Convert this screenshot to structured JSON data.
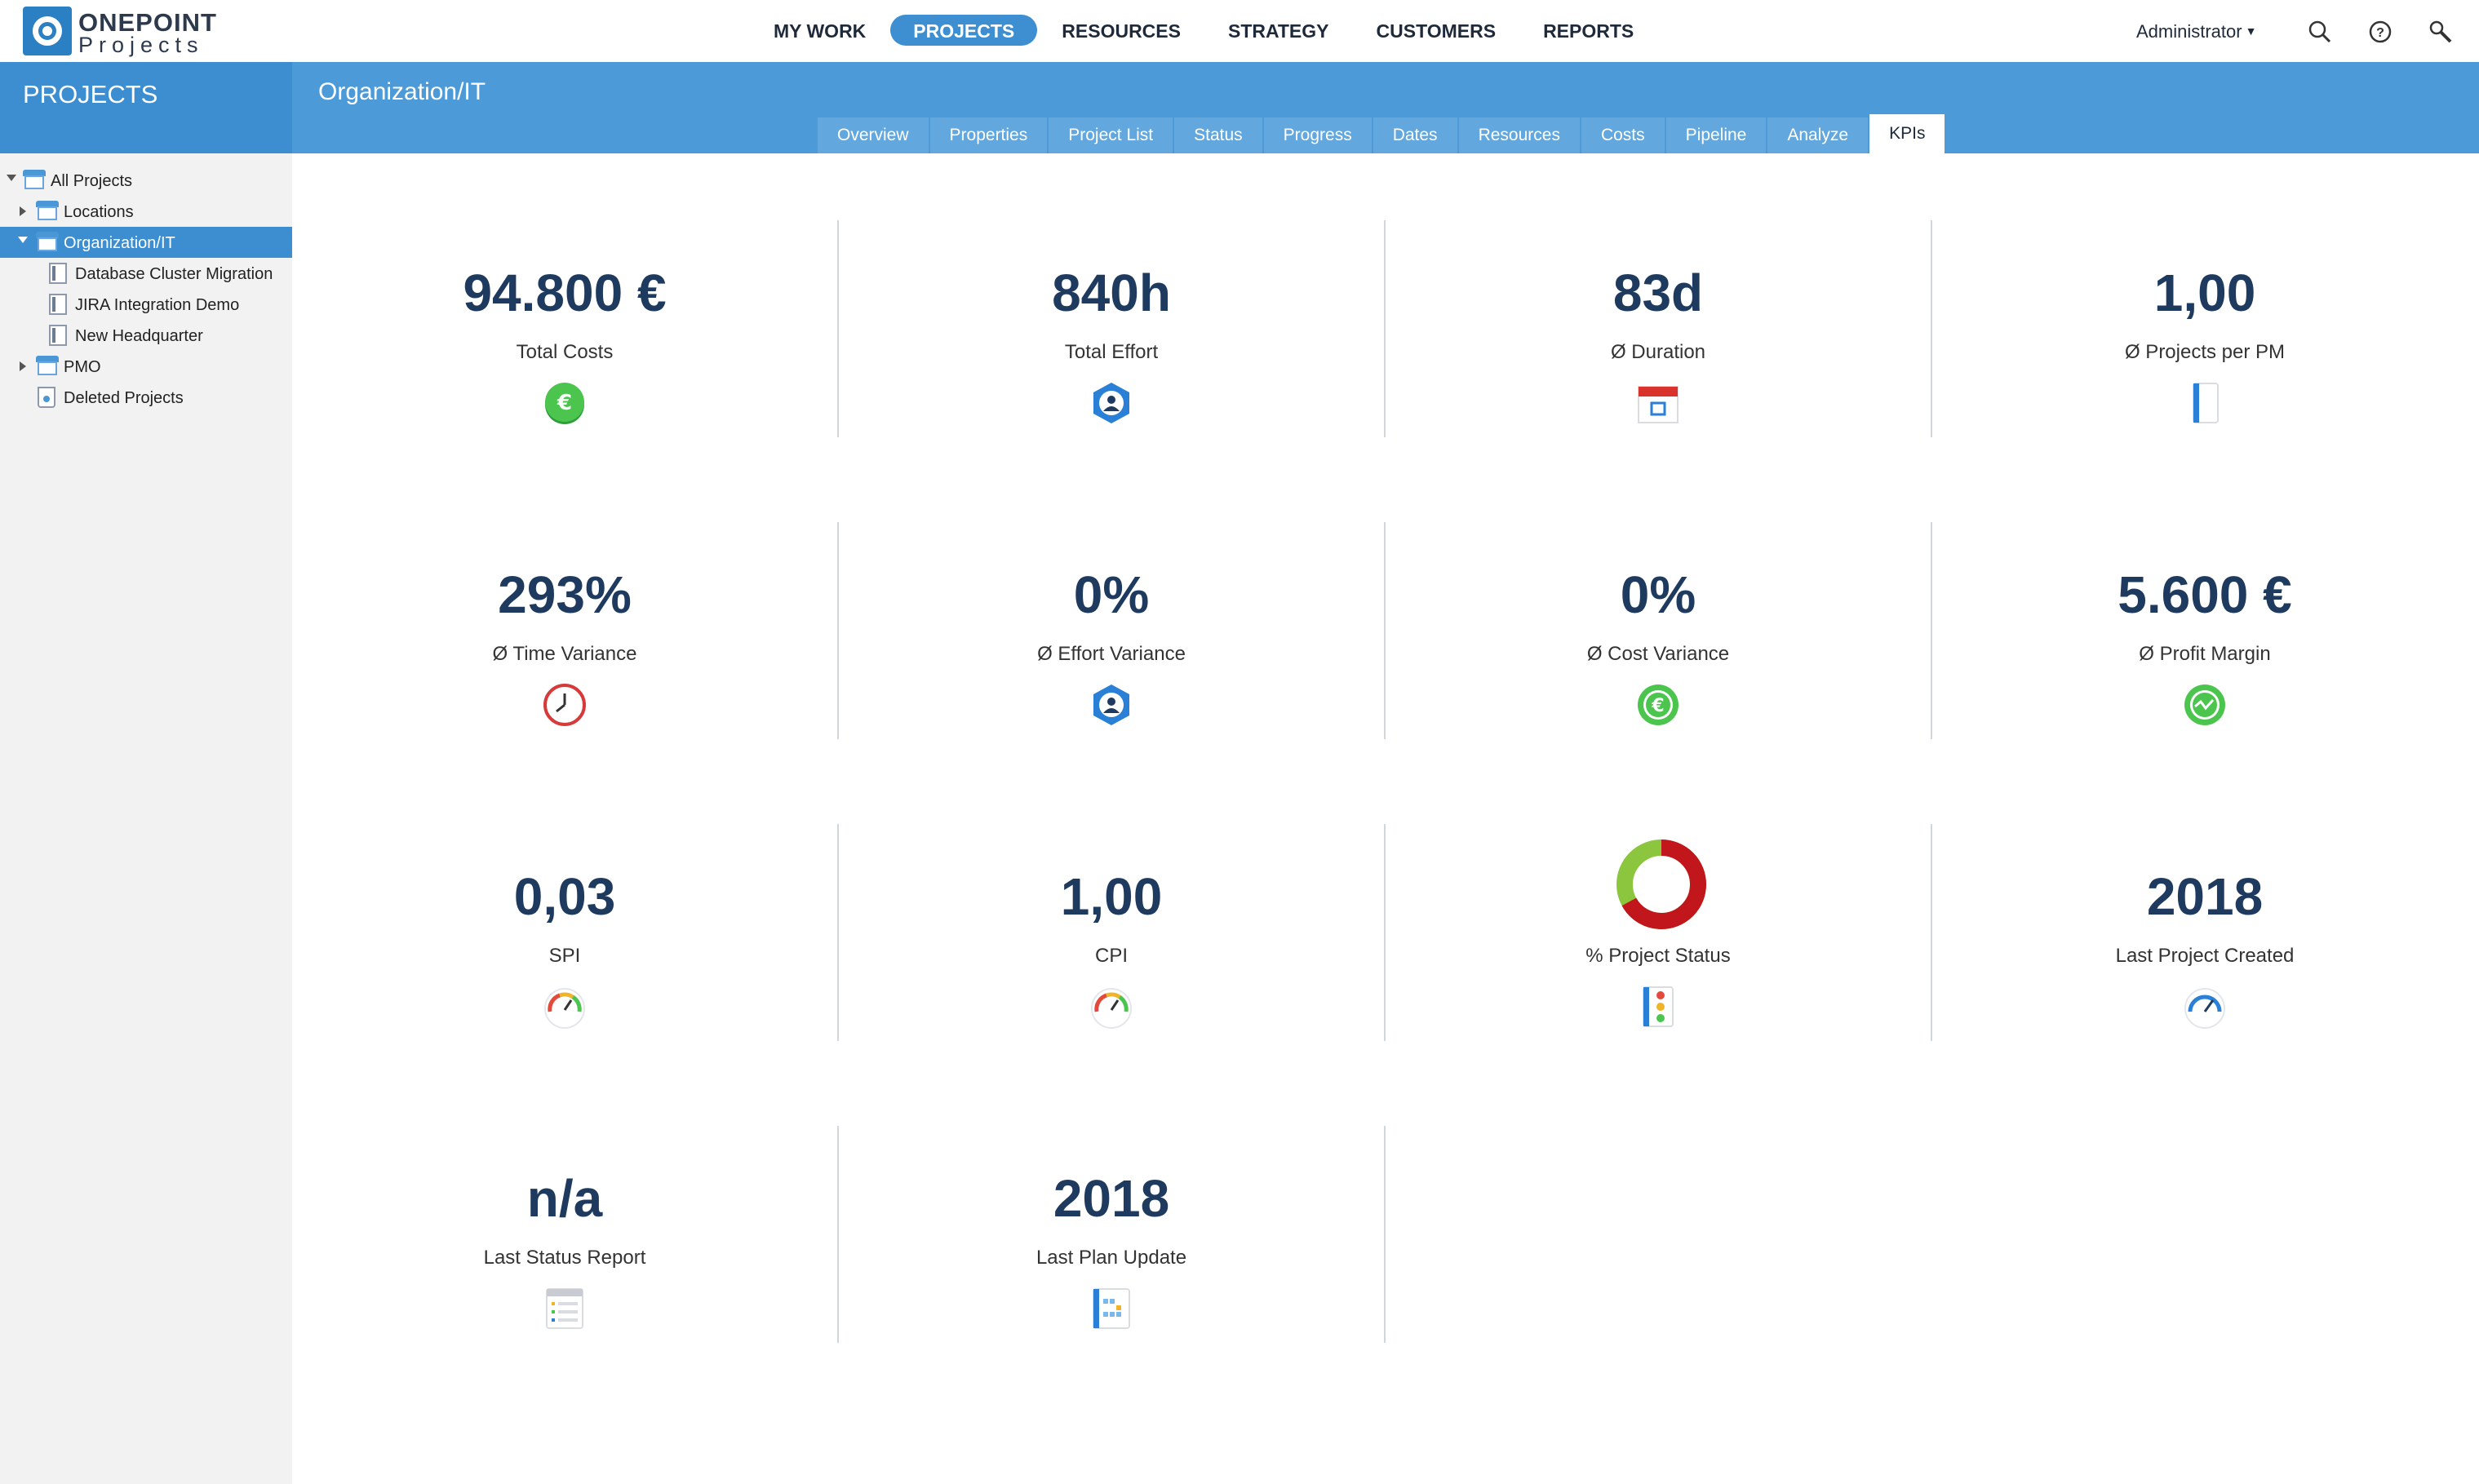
{
  "app": {
    "logo_line1": "ONEPOINT",
    "logo_line2": "Projects"
  },
  "nav": {
    "items": [
      "MY WORK",
      "PROJECTS",
      "RESOURCES",
      "STRATEGY",
      "CUSTOMERS",
      "REPORTS"
    ],
    "active": "PROJECTS",
    "user": "Administrator"
  },
  "sidebar": {
    "title": "PROJECTS",
    "tree": [
      {
        "label": "All Projects",
        "expanded": true,
        "type": "folder"
      },
      {
        "label": "Locations",
        "expanded": false,
        "type": "folder"
      },
      {
        "label": "Organization/IT",
        "expanded": true,
        "type": "folder",
        "selected": true
      },
      {
        "label": "Database Cluster Migration",
        "type": "project"
      },
      {
        "label": "JIRA Integration Demo",
        "type": "project"
      },
      {
        "label": "New Headquarter",
        "type": "project"
      },
      {
        "label": "PMO",
        "expanded": false,
        "type": "folder"
      },
      {
        "label": "Deleted Projects",
        "type": "trash"
      }
    ]
  },
  "header": {
    "breadcrumb": "Organization/IT"
  },
  "tabs": [
    "Overview",
    "Properties",
    "Project List",
    "Status",
    "Progress",
    "Dates",
    "Resources",
    "Costs",
    "Pipeline",
    "Analyze",
    "KPIs"
  ],
  "active_tab": "KPIs",
  "kpis": [
    {
      "value": "94.800 €",
      "label": "Total Costs",
      "icon": "euro-coin-icon"
    },
    {
      "value": "840h",
      "label": "Total Effort",
      "icon": "person-badge-icon"
    },
    {
      "value": "83d",
      "label": "Ø Duration",
      "icon": "calendar-icon"
    },
    {
      "value": "1,00",
      "label": "Ø Projects per PM",
      "icon": "notebook-icon"
    },
    {
      "value": "293%",
      "label": "Ø Time Variance",
      "icon": "clock-icon"
    },
    {
      "value": "0%",
      "label": "Ø Effort Variance",
      "icon": "person-badge-icon"
    },
    {
      "value": "0%",
      "label": "Ø Cost Variance",
      "icon": "euro-coin-icon"
    },
    {
      "value": "5.600 €",
      "label": "Ø Profit Margin",
      "icon": "trend-coin-icon"
    },
    {
      "value": "0,03",
      "label": "SPI",
      "icon": "gauge-icon"
    },
    {
      "value": "1,00",
      "label": "CPI",
      "icon": "gauge-icon"
    },
    {
      "value": "",
      "label": "% Project Status",
      "icon": "traffic-light-icon",
      "donut": {
        "red": 0.67,
        "green": 0.33
      }
    },
    {
      "value": "2018",
      "label": "Last Project Created",
      "icon": "speedometer-icon"
    },
    {
      "value": "n/a",
      "label": "Last Status Report",
      "icon": "checklist-icon"
    },
    {
      "value": "2018",
      "label": "Last Plan Update",
      "icon": "plan-chart-icon"
    }
  ],
  "colors": {
    "accent": "#3c8ed0",
    "header": "#4c9ad8",
    "kpi_value": "#1f3a5f",
    "status_red": "#c0161c",
    "status_green": "#8cc63f"
  }
}
